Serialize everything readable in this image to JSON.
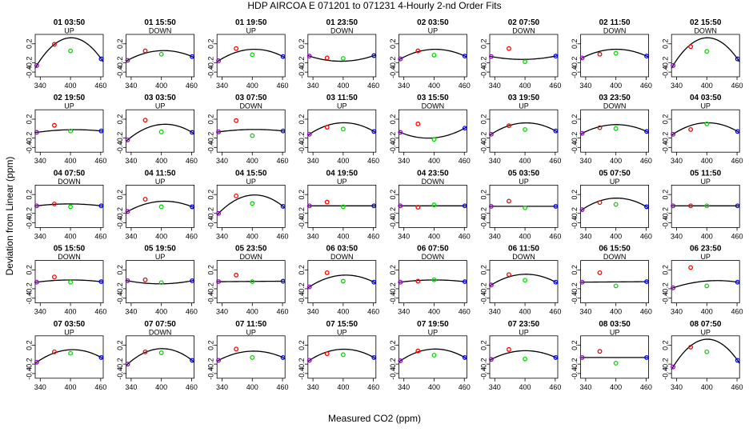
{
  "chart_data": {
    "type": "scatter",
    "title": "HDP   AIRCOA E   071201 to 071231   4-Hourly 2-nd Order Fits",
    "xlabel": "Measured CO2 (ppm)",
    "ylabel": "Deviation from Linear (ppm)",
    "xlim": [
      330,
      465
    ],
    "ylim": [
      -0.5,
      0.4
    ],
    "xticks": [
      "340",
      "400",
      "460"
    ],
    "yticks": [
      "-0.4",
      "-0.2",
      "0.2"
    ],
    "ytick_values": [
      -0.4,
      -0.2,
      0.2
    ],
    "xtick_values": [
      340,
      400,
      460
    ],
    "standard_x": [
      333,
      368,
      400,
      461
    ],
    "marker_colors": [
      "#9900cc",
      "#ff0000",
      "#00dd00",
      "#0000ff"
    ],
    "curve_color": "#000000",
    "panels": [
      {
        "title": "01 03:50",
        "dir": "UP",
        "y": [
          -0.26,
          0.19,
          0.05,
          -0.12
        ],
        "a": -0.000126
      },
      {
        "title": "01 15:50",
        "dir": "DOWN",
        "y": [
          -0.15,
          0.05,
          -0.02,
          -0.07
        ],
        "a": -4e-05
      },
      {
        "title": "01 19:50",
        "dir": "UP",
        "y": [
          -0.16,
          0.1,
          -0.03,
          -0.07
        ],
        "a": -4.8e-05
      },
      {
        "title": "01 23:50",
        "dir": "DOWN",
        "y": [
          -0.06,
          -0.1,
          -0.11,
          -0.05
        ],
        "a": 2.8e-05
      },
      {
        "title": "02 03:50",
        "dir": "UP",
        "y": [
          -0.12,
          0.05,
          -0.04,
          -0.06
        ],
        "a": -4.2e-05
      },
      {
        "title": "02 07:50",
        "dir": "DOWN",
        "y": [
          -0.07,
          0.1,
          -0.18,
          -0.06
        ],
        "a": 1.6e-05
      },
      {
        "title": "02 11:50",
        "dir": "DOWN",
        "y": [
          -0.1,
          -0.02,
          0.0,
          -0.06
        ],
        "a": -4e-05
      },
      {
        "title": "02 15:50",
        "dir": "DOWN",
        "y": [
          -0.26,
          0.14,
          0.04,
          -0.12
        ],
        "a": -0.000126
      },
      {
        "title": "02 19:50",
        "dir": "UP",
        "y": [
          -0.08,
          0.07,
          -0.05,
          -0.05
        ],
        "a": -1e-05
      },
      {
        "title": "03 03:50",
        "dir": "UP",
        "y": [
          -0.24,
          0.18,
          -0.07,
          -0.08
        ],
        "a": -6e-05
      },
      {
        "title": "03 07:50",
        "dir": "DOWN",
        "y": [
          -0.07,
          0.17,
          -0.15,
          -0.05
        ],
        "a": -1e-05
      },
      {
        "title": "03 11:50",
        "dir": "UP",
        "y": [
          -0.12,
          0.03,
          -0.01,
          -0.06
        ],
        "a": -5.2e-05
      },
      {
        "title": "03 15:50",
        "dir": "DOWN",
        "y": [
          -0.08,
          0.1,
          -0.23,
          0.01
        ],
        "a": 4e-05
      },
      {
        "title": "03 19:50",
        "dir": "UP",
        "y": [
          -0.12,
          0.06,
          -0.02,
          -0.05
        ],
        "a": -5e-05
      },
      {
        "title": "03 23:50",
        "dir": "DOWN",
        "y": [
          -0.1,
          0.02,
          0.0,
          -0.06
        ],
        "a": -4e-05
      },
      {
        "title": "04 03:50",
        "dir": "UP",
        "y": [
          -0.12,
          -0.02,
          0.1,
          -0.06
        ],
        "a": -5.2e-05
      },
      {
        "title": "04 07:50",
        "dir": "DOWN",
        "y": [
          -0.04,
          0.0,
          -0.06,
          -0.04
        ],
        "a": -1e-05
      },
      {
        "title": "04 11:50",
        "dir": "UP",
        "y": [
          -0.16,
          0.1,
          -0.06,
          -0.06
        ],
        "a": -4e-05
      },
      {
        "title": "04 15:50",
        "dir": "UP",
        "y": [
          -0.2,
          0.17,
          0.01,
          -0.05
        ],
        "a": -7.6e-05
      },
      {
        "title": "04 19:50",
        "dir": "UP",
        "y": [
          -0.04,
          0.04,
          -0.06,
          -0.04
        ],
        "a": 0.0
      },
      {
        "title": "04 23:50",
        "dir": "DOWN",
        "y": [
          -0.04,
          -0.07,
          -0.02,
          -0.04
        ],
        "a": 0.0
      },
      {
        "title": "05 03:50",
        "dir": "UP",
        "y": [
          -0.05,
          0.06,
          -0.08,
          -0.05
        ],
        "a": 0.0
      },
      {
        "title": "05 07:50",
        "dir": "UP",
        "y": [
          -0.12,
          0.03,
          -0.01,
          -0.06
        ],
        "a": -5.2e-05
      },
      {
        "title": "05 11:50",
        "dir": "UP",
        "y": [
          -0.04,
          -0.04,
          -0.04,
          -0.04
        ],
        "a": 0.0
      },
      {
        "title": "05 15:50",
        "dir": "DOWN",
        "y": [
          -0.06,
          0.05,
          -0.06,
          -0.05
        ],
        "a": -1e-05
      },
      {
        "title": "05 19:50",
        "dir": "UP",
        "y": [
          -0.03,
          -0.01,
          -0.07,
          -0.03
        ],
        "a": 1.6e-05
      },
      {
        "title": "05 23:50",
        "dir": "DOWN",
        "y": [
          -0.05,
          0.09,
          -0.05,
          -0.04
        ],
        "a": 0.0
      },
      {
        "title": "06 03:50",
        "dir": "DOWN",
        "y": [
          -0.16,
          0.14,
          -0.04,
          -0.06
        ],
        "a": -4.8e-05
      },
      {
        "title": "06 07:50",
        "dir": "DOWN",
        "y": [
          -0.06,
          -0.04,
          -0.01,
          -0.05
        ],
        "a": -1e-05
      },
      {
        "title": "06 11:50",
        "dir": "DOWN",
        "y": [
          -0.12,
          0.1,
          -0.02,
          -0.06
        ],
        "a": -4.8e-05
      },
      {
        "title": "06 15:50",
        "dir": "DOWN",
        "y": [
          -0.06,
          0.14,
          -0.14,
          -0.05
        ],
        "a": 0.0
      },
      {
        "title": "06 23:50",
        "dir": "UP",
        "y": [
          -0.18,
          0.25,
          -0.14,
          -0.06
        ],
        "a": -2e-05
      },
      {
        "title": "07 03:50",
        "dir": "UP",
        "y": [
          -0.16,
          0.06,
          0.03,
          -0.06
        ],
        "a": -5.2e-05
      },
      {
        "title": "07 07:50",
        "dir": "DOWN",
        "y": [
          -0.2,
          0.06,
          0.04,
          -0.12
        ],
        "a": -7e-05
      },
      {
        "title": "07 11:50",
        "dir": "UP",
        "y": [
          -0.12,
          0.12,
          -0.06,
          -0.06
        ],
        "a": -4e-05
      },
      {
        "title": "07 15:50",
        "dir": "UP",
        "y": [
          -0.12,
          0.02,
          0.0,
          -0.06
        ],
        "a": -5e-05
      },
      {
        "title": "07 19:50",
        "dir": "UP",
        "y": [
          -0.13,
          0.08,
          -0.01,
          -0.06
        ],
        "a": -5.2e-05
      },
      {
        "title": "07 23:50",
        "dir": "UP",
        "y": [
          -0.1,
          0.11,
          -0.09,
          -0.06
        ],
        "a": -4e-05
      },
      {
        "title": "08 03:50",
        "dir": "UP",
        "y": [
          -0.06,
          0.07,
          -0.18,
          -0.06
        ],
        "a": 0.0
      },
      {
        "title": "08 07:50",
        "dir": "UP",
        "y": [
          -0.26,
          0.16,
          0.06,
          -0.12
        ],
        "a": -0.000126
      }
    ]
  }
}
